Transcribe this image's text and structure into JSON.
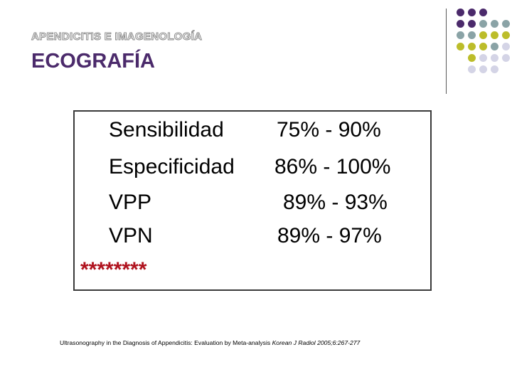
{
  "header": {
    "subtitle": "APENDICITIS E IMAGENOLOGÍA",
    "title": "ECOGRAFÍA"
  },
  "decoration": {
    "colors": {
      "purple": "#4b2a6b",
      "teal": "#8aa3a6",
      "olive": "#bcbd2a",
      "lavender": "#d4d4e6"
    },
    "dot_rows": [
      [
        "purple",
        "purple",
        "purple"
      ],
      [
        "purple",
        "purple",
        "teal",
        "teal",
        "teal"
      ],
      [
        "teal",
        "teal",
        "olive",
        "olive",
        "olive"
      ],
      [
        "olive",
        "olive",
        "olive",
        "teal",
        "lavender"
      ],
      [
        "olive",
        "lavender",
        "lavender",
        "lavender"
      ],
      [
        "lavender",
        "lavender",
        "lavender"
      ]
    ]
  },
  "stats": [
    {
      "label": "Sensibilidad",
      "value": "75% - 90%"
    },
    {
      "label": "Especificidad",
      "value": "86% - 100%"
    },
    {
      "label": "VPP",
      "value": "89% - 93%"
    },
    {
      "label": "VPN",
      "value": "89% - 97%"
    }
  ],
  "stars": "********",
  "citation": {
    "text": "Ultrasonography in the Diagnosis of Appendicitis: Evaluation by Meta-analysis ",
    "journal": "Korean J Radiol 2005;6:267-277"
  }
}
